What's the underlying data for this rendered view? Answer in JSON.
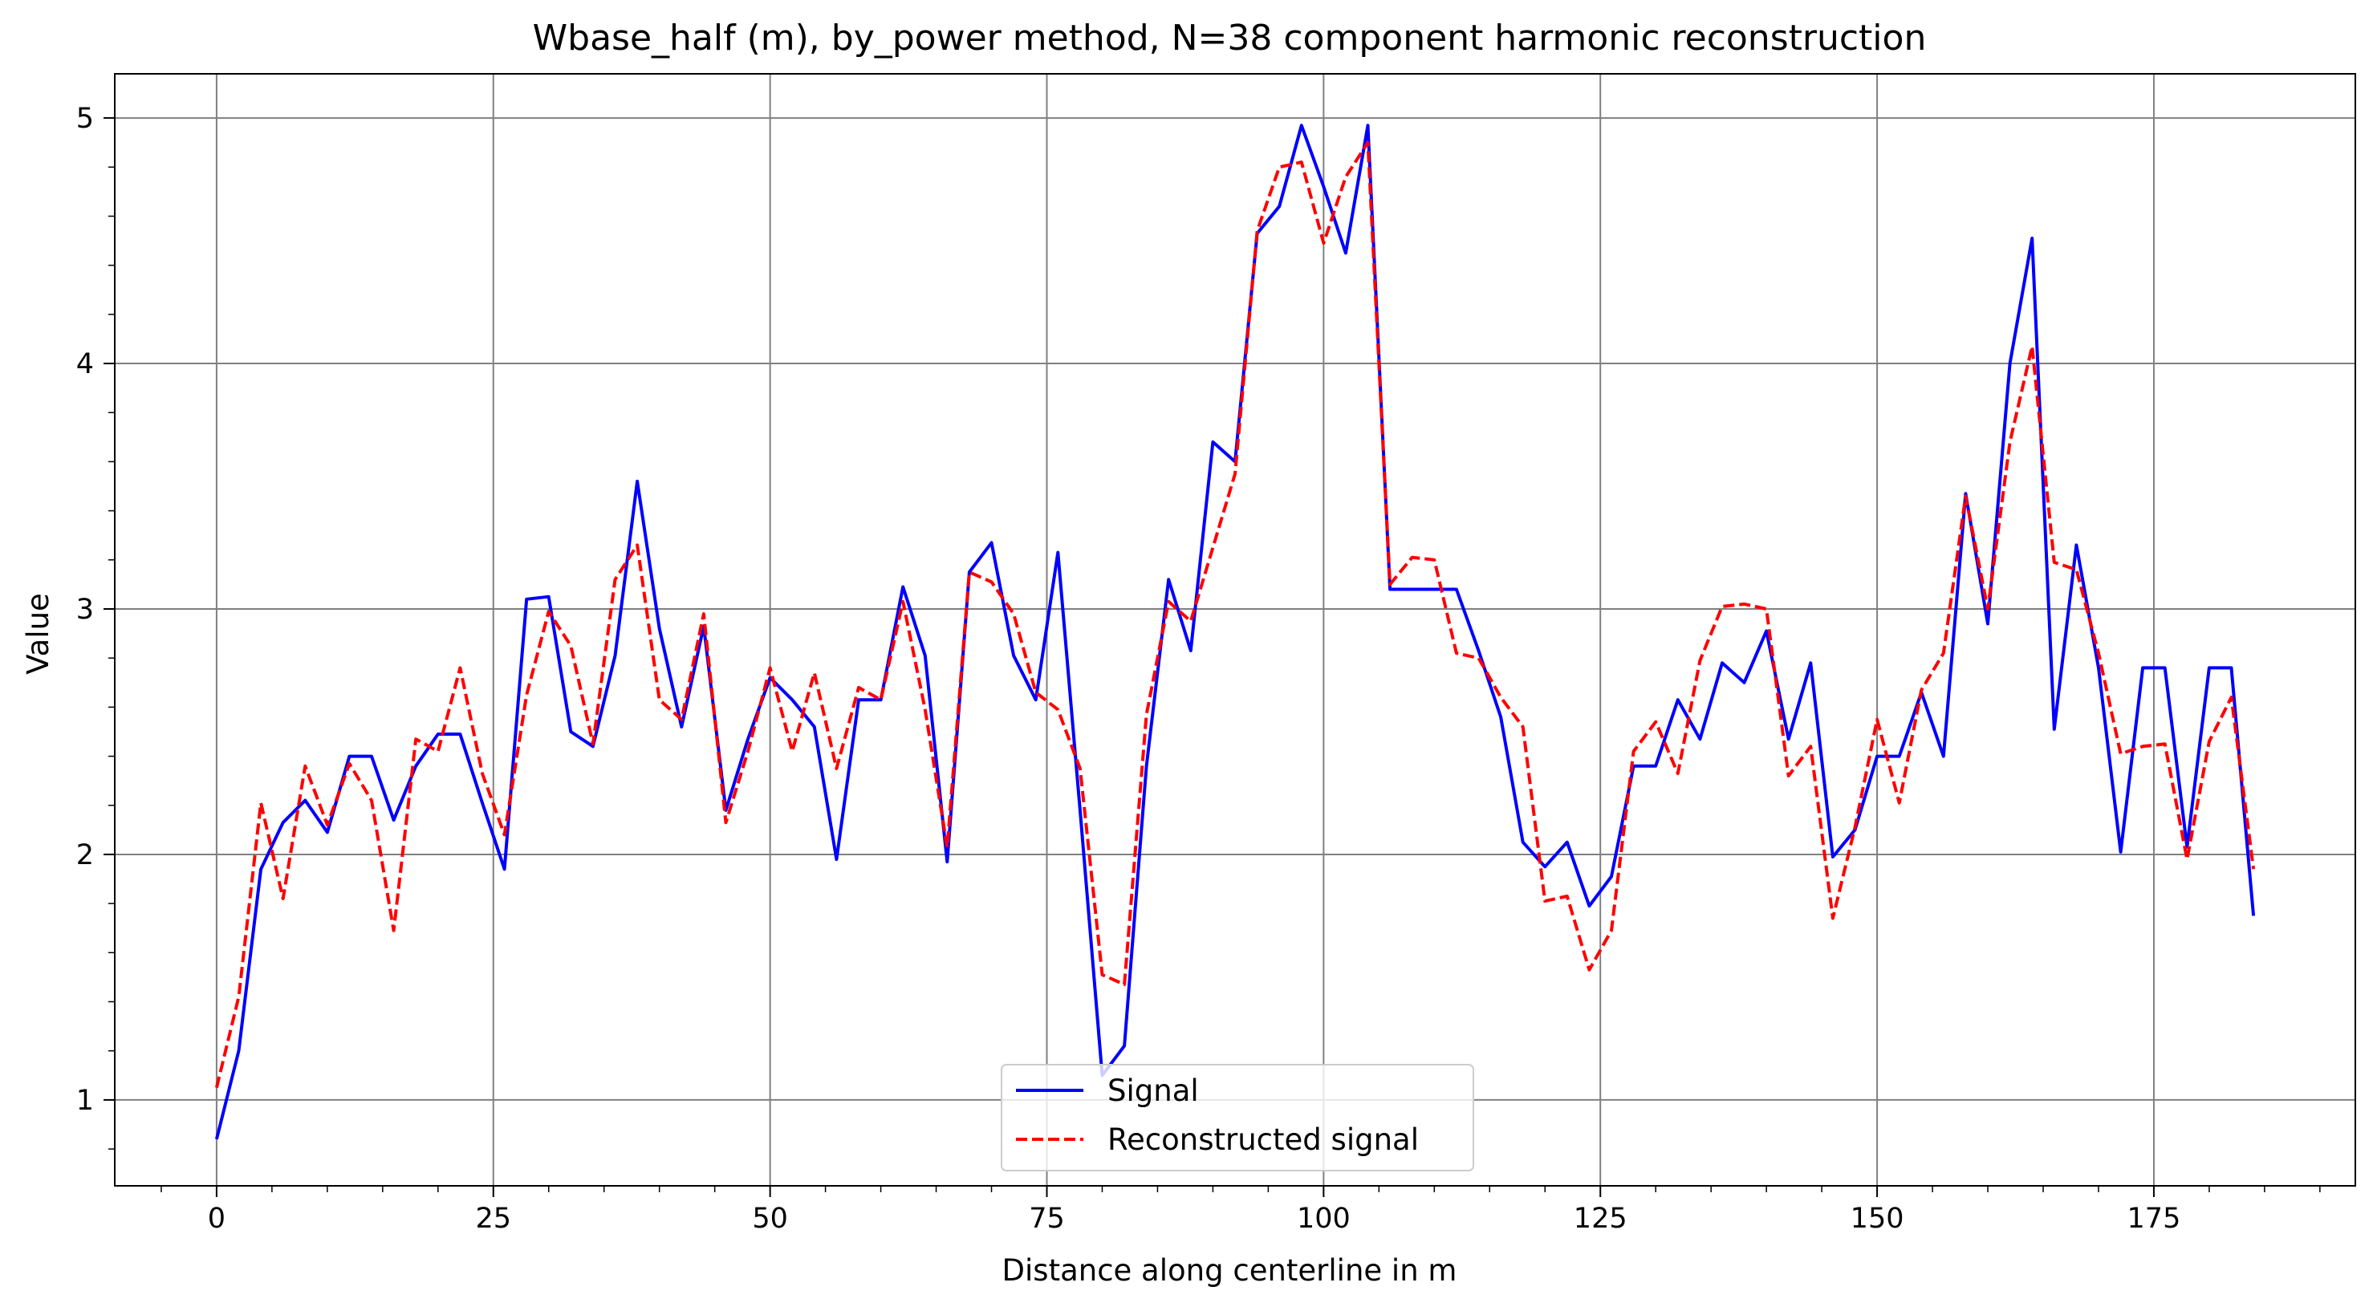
{
  "chart_data": {
    "type": "line",
    "title": "Wbase_half (m), by_power method, N=38 component harmonic reconstruction",
    "xlabel": "Distance along centerline in m",
    "ylabel": "Value",
    "xlim": [
      -9.2,
      193.2
    ],
    "ylim": [
      0.65,
      5.18
    ],
    "xticks": [
      0,
      25,
      50,
      75,
      100,
      125,
      150,
      175
    ],
    "yticks": [
      1,
      2,
      3,
      4,
      5
    ],
    "x_minor_step": 5,
    "y_minor_step": 0.2,
    "grid": true,
    "legend_position": "lower-center",
    "x": [
      0,
      2,
      4,
      6,
      8,
      10,
      12,
      14,
      16,
      18,
      20,
      22,
      24,
      26,
      28,
      30,
      32,
      34,
      36,
      38,
      40,
      42,
      44,
      46,
      48,
      50,
      52,
      54,
      56,
      58,
      60,
      62,
      64,
      66,
      68,
      70,
      72,
      74,
      76,
      78,
      80,
      82,
      84,
      86,
      88,
      90,
      92,
      94,
      96,
      98,
      100,
      102,
      104,
      106,
      108,
      110,
      112,
      114,
      116,
      118,
      120,
      122,
      124,
      126,
      128,
      130,
      132,
      134,
      136,
      138,
      140,
      142,
      144,
      146,
      148,
      150,
      152,
      154,
      156,
      158,
      160,
      162,
      164,
      166,
      168,
      170,
      172,
      174,
      176,
      178,
      180,
      182,
      184
    ],
    "series": [
      {
        "name": "Signal",
        "color": "#0000ff",
        "dash": "solid",
        "values": [
          0.84,
          1.2,
          1.94,
          2.13,
          2.22,
          2.09,
          2.4,
          2.4,
          2.14,
          2.36,
          2.49,
          2.49,
          2.21,
          1.94,
          3.04,
          3.05,
          2.5,
          2.44,
          2.81,
          3.52,
          2.92,
          2.52,
          2.93,
          2.18,
          2.47,
          2.72,
          2.63,
          2.52,
          1.98,
          2.63,
          2.63,
          3.09,
          2.81,
          1.97,
          3.15,
          3.27,
          2.81,
          2.63,
          3.23,
          2.18,
          1.1,
          1.22,
          2.36,
          3.12,
          2.83,
          3.68,
          3.6,
          4.53,
          4.64,
          4.97,
          4.72,
          4.45,
          4.97,
          3.08,
          3.08,
          3.08,
          3.08,
          2.83,
          2.56,
          2.05,
          1.95,
          2.05,
          1.79,
          1.91,
          2.36,
          2.36,
          2.63,
          2.47,
          2.78,
          2.7,
          2.91,
          2.47,
          2.78,
          1.99,
          2.1,
          2.4,
          2.4,
          2.66,
          2.4,
          3.47,
          2.94,
          4.0,
          4.51,
          2.51,
          3.26,
          2.76,
          2.01,
          2.76,
          2.76,
          2.03,
          2.76,
          2.76,
          1.75
        ]
      },
      {
        "name": "Reconstructed signal",
        "color": "#ff0000",
        "dash": "dashed",
        "values": [
          1.05,
          1.42,
          2.21,
          1.82,
          2.36,
          2.12,
          2.37,
          2.22,
          1.69,
          2.47,
          2.42,
          2.76,
          2.33,
          2.08,
          2.65,
          2.99,
          2.85,
          2.45,
          3.12,
          3.26,
          2.63,
          2.55,
          2.98,
          2.13,
          2.42,
          2.76,
          2.42,
          2.74,
          2.35,
          2.68,
          2.63,
          3.03,
          2.59,
          2.03,
          3.15,
          3.11,
          2.98,
          2.66,
          2.59,
          2.35,
          1.51,
          1.47,
          2.57,
          3.03,
          2.95,
          3.25,
          3.55,
          4.54,
          4.8,
          4.82,
          4.49,
          4.76,
          4.9,
          3.1,
          3.21,
          3.2,
          2.82,
          2.8,
          2.64,
          2.52,
          1.81,
          1.83,
          1.53,
          1.69,
          2.42,
          2.54,
          2.33,
          2.79,
          3.01,
          3.02,
          3.0,
          2.32,
          2.44,
          1.74,
          2.11,
          2.55,
          2.21,
          2.67,
          2.82,
          3.46,
          3.0,
          3.68,
          4.07,
          3.19,
          3.16,
          2.82,
          2.41,
          2.44,
          2.45,
          1.98,
          2.46,
          2.64,
          1.94
        ]
      }
    ]
  }
}
